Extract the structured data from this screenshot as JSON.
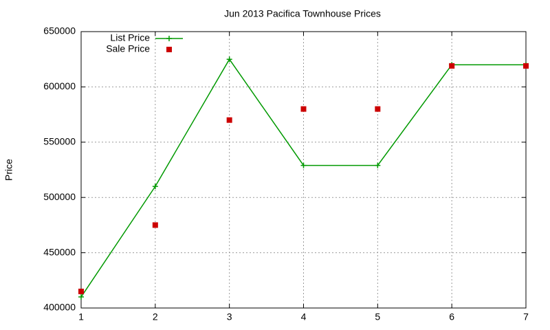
{
  "chart_data": {
    "type": "line",
    "title": "Jun 2013 Pacifica Townhouse Prices",
    "y_label": "Price",
    "x": [
      1,
      2,
      3,
      4,
      5,
      6,
      7
    ],
    "xlim": [
      1,
      7
    ],
    "xticks": [
      1,
      2,
      3,
      4,
      5,
      6,
      7
    ],
    "ylim": [
      400000,
      650000
    ],
    "yticks": [
      400000,
      450000,
      500000,
      550000,
      600000,
      650000
    ],
    "grid": true,
    "legend": "top-left",
    "series": [
      {
        "name": "List Price",
        "color": "#009900",
        "style": "linespoints",
        "values": [
          410000,
          510000,
          625000,
          529000,
          529000,
          620000,
          620000
        ]
      },
      {
        "name": "Sale Price",
        "color": "#cc0000",
        "style": "points",
        "values": [
          415000,
          475000,
          570000,
          580000,
          580000,
          619000,
          619000
        ]
      }
    ]
  }
}
